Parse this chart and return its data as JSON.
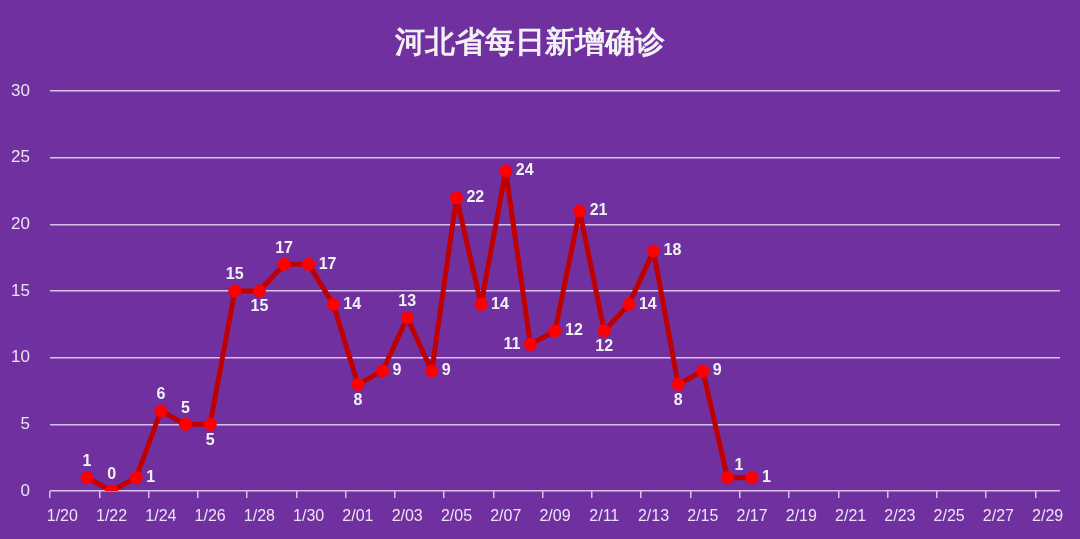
{
  "chart_data": {
    "type": "line",
    "title": "河北省每日新增确诊",
    "categories": [
      "1/20",
      null,
      "1/22",
      null,
      "1/24",
      null,
      "1/26",
      null,
      "1/28",
      null,
      "1/30",
      null,
      "2/01",
      null,
      "2/03",
      null,
      "2/05",
      null,
      "2/07",
      null,
      "2/09",
      null,
      "2/11",
      null,
      "2/13",
      null,
      "2/15",
      null,
      "2/17",
      null,
      "2/19",
      null,
      "2/21",
      null,
      "2/23",
      null,
      "2/25",
      null,
      "2/27",
      null,
      "2/29"
    ],
    "series": [
      {
        "color": "#c00000",
        "colors": [
          null,
          "#ff0000",
          "#ff0000",
          "#ff0000",
          "#ff0000",
          "#ff0000",
          "#ff0000",
          "#ff0000",
          "#ff0000",
          "#ff0000",
          "#ff0000",
          "#ff0000",
          "#ff0000",
          "#ff0000",
          "#ff0000",
          "#ff0000",
          "#ff0000",
          "#ff0000",
          "#ff0000",
          "#ff0000",
          "#ff0000",
          "#ff0000",
          "#ff0000",
          "#ff0000",
          "#ff0000",
          "#ff0000",
          "#ff0000",
          "#ff0000",
          "#ff0000",
          null,
          null,
          null,
          null,
          null,
          null,
          null,
          null,
          null,
          null,
          null,
          null
        ],
        "values": [
          null,
          1,
          0,
          1,
          6,
          5,
          5,
          15,
          15,
          17,
          17,
          14,
          8,
          9,
          13,
          9,
          22,
          14,
          24,
          11,
          12,
          21,
          12,
          14,
          18,
          8,
          9,
          1,
          1,
          null,
          null,
          null,
          null,
          null,
          null,
          null,
          null,
          null,
          null,
          null,
          null
        ]
      }
    ],
    "ylim": [
      0,
      30
    ],
    "yticks": [
      0,
      5,
      10,
      15,
      20,
      25,
      30
    ],
    "grid": "y",
    "legend": false,
    "marker": "circle",
    "line_style": "solid",
    "data_labels": true
  }
}
